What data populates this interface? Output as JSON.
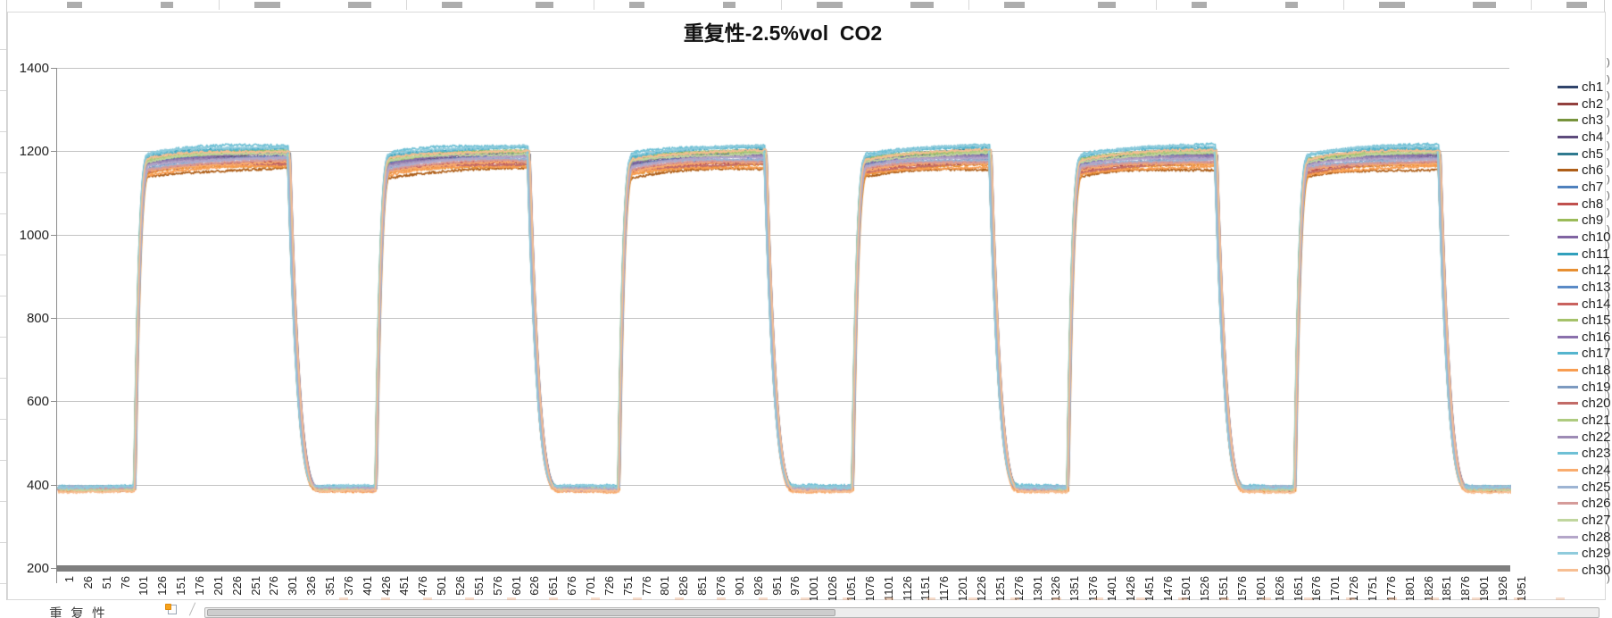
{
  "sheet": {
    "tab_label": "重复性"
  },
  "right_strip_fragment": ")",
  "chart_data": {
    "type": "line",
    "title": "重复性-2.5%vol  CO2",
    "xlabel": "",
    "ylabel": "",
    "grid": "horizontal",
    "legend_position": "right",
    "y": {
      "min": 200,
      "max": 1400,
      "tick_step": 200,
      "tick_labels": [
        1400,
        1200,
        1000,
        800,
        600,
        400,
        200
      ]
    },
    "x": {
      "min": 1,
      "max": 1960
    },
    "x_tick_labels": [
      1,
      26,
      51,
      76,
      101,
      126,
      151,
      176,
      201,
      226,
      251,
      276,
      301,
      326,
      351,
      376,
      401,
      426,
      451,
      476,
      501,
      526,
      551,
      576,
      601,
      626,
      651,
      676,
      701,
      726,
      751,
      776,
      801,
      826,
      851,
      876,
      901,
      926,
      951,
      976,
      1001,
      1026,
      1051,
      1076,
      1101,
      1126,
      1151,
      1176,
      1201,
      1226,
      1251,
      1276,
      1301,
      1326,
      1351,
      1376,
      1401,
      1426,
      1451,
      1476,
      1501,
      1526,
      1551,
      1576,
      1601,
      1626,
      1651,
      1676,
      1701,
      1726,
      1751,
      1776,
      1801,
      1826,
      1851,
      1876,
      1901,
      1926,
      1951
    ],
    "waveform": {
      "description": "six gas-exposure square-wave cycles: baseline ~390, plateau ~1155-1218",
      "rise_starts": [
        104,
        428,
        754,
        1068,
        1357,
        1662
      ],
      "fall_starts": [
        311,
        633,
        951,
        1253,
        1556,
        1856
      ],
      "rise_width": 20,
      "fall_width": 42,
      "plateau_creep": 20,
      "creep_tau": 55
    },
    "series": [
      {
        "name": "ch1",
        "color": "#30446B",
        "plateau": 1193,
        "baseline": 390,
        "noise": 2.5
      },
      {
        "name": "ch2",
        "color": "#92403D",
        "plateau": 1172,
        "baseline": 389,
        "noise": 2.5
      },
      {
        "name": "ch3",
        "color": "#77933C",
        "plateau": 1199,
        "baseline": 391,
        "noise": 2.5
      },
      {
        "name": "ch4",
        "color": "#5D4B7C",
        "plateau": 1191,
        "baseline": 390,
        "noise": 2.5
      },
      {
        "name": "ch5",
        "color": "#2F7A8F",
        "plateau": 1203,
        "baseline": 392,
        "noise": 2.5
      },
      {
        "name": "ch6",
        "color": "#AE5E18",
        "plateau": 1158,
        "baseline": 388,
        "noise": 3
      },
      {
        "name": "ch7",
        "color": "#4F81BD",
        "plateau": 1196,
        "baseline": 391,
        "noise": 2.5
      },
      {
        "name": "ch8",
        "color": "#C0504D",
        "plateau": 1174,
        "baseline": 389,
        "noise": 2.5
      },
      {
        "name": "ch9",
        "color": "#9BBB59",
        "plateau": 1201,
        "baseline": 391,
        "noise": 2.5
      },
      {
        "name": "ch10",
        "color": "#8064A2",
        "plateau": 1189,
        "baseline": 390,
        "noise": 2.5
      },
      {
        "name": "ch11",
        "color": "#31A0BC",
        "plateau": 1210,
        "baseline": 393,
        "noise": 3
      },
      {
        "name": "ch12",
        "color": "#E78F32",
        "plateau": 1167,
        "baseline": 387,
        "noise": 3
      },
      {
        "name": "ch13",
        "color": "#5A8AC6",
        "plateau": 1186,
        "baseline": 391,
        "noise": 2.5
      },
      {
        "name": "ch14",
        "color": "#C9625E",
        "plateau": 1176,
        "baseline": 389,
        "noise": 2.5
      },
      {
        "name": "ch15",
        "color": "#A5C26A",
        "plateau": 1197,
        "baseline": 391,
        "noise": 2.5
      },
      {
        "name": "ch16",
        "color": "#8A70AC",
        "plateau": 1192,
        "baseline": 390,
        "noise": 2.5
      },
      {
        "name": "ch17",
        "color": "#55B5CE",
        "plateau": 1208,
        "baseline": 394,
        "noise": 3
      },
      {
        "name": "ch18",
        "color": "#F89D51",
        "plateau": 1164,
        "baseline": 386,
        "noise": 3
      },
      {
        "name": "ch19",
        "color": "#7C9AC0",
        "plateau": 1183,
        "baseline": 392,
        "noise": 2.5
      },
      {
        "name": "ch20",
        "color": "#C26B67",
        "plateau": 1171,
        "baseline": 388,
        "noise": 2.5
      },
      {
        "name": "ch21",
        "color": "#AECB7F",
        "plateau": 1200,
        "baseline": 390,
        "noise": 2.5
      },
      {
        "name": "ch22",
        "color": "#9D8BB5",
        "plateau": 1187,
        "baseline": 391,
        "noise": 2.5
      },
      {
        "name": "ch23",
        "color": "#6EC0D5",
        "plateau": 1215,
        "baseline": 396,
        "noise": 3.5
      },
      {
        "name": "ch24",
        "color": "#F9AC6E",
        "plateau": 1173,
        "baseline": 385,
        "noise": 3
      },
      {
        "name": "ch25",
        "color": "#9DB4D3",
        "plateau": 1181,
        "baseline": 393,
        "noise": 2.5
      },
      {
        "name": "ch26",
        "color": "#D59B99",
        "plateau": 1177,
        "baseline": 388,
        "noise": 2.5
      },
      {
        "name": "ch27",
        "color": "#C0D69E",
        "plateau": 1195,
        "baseline": 389,
        "noise": 2.5
      },
      {
        "name": "ch28",
        "color": "#B4A6C9",
        "plateau": 1185,
        "baseline": 392,
        "noise": 2.5
      },
      {
        "name": "ch29",
        "color": "#8FCBDC",
        "plateau": 1212,
        "baseline": 395,
        "noise": 3.5
      },
      {
        "name": "ch30",
        "color": "#F7BE92",
        "plateau": 1202,
        "baseline": 384,
        "noise": 3
      }
    ]
  }
}
